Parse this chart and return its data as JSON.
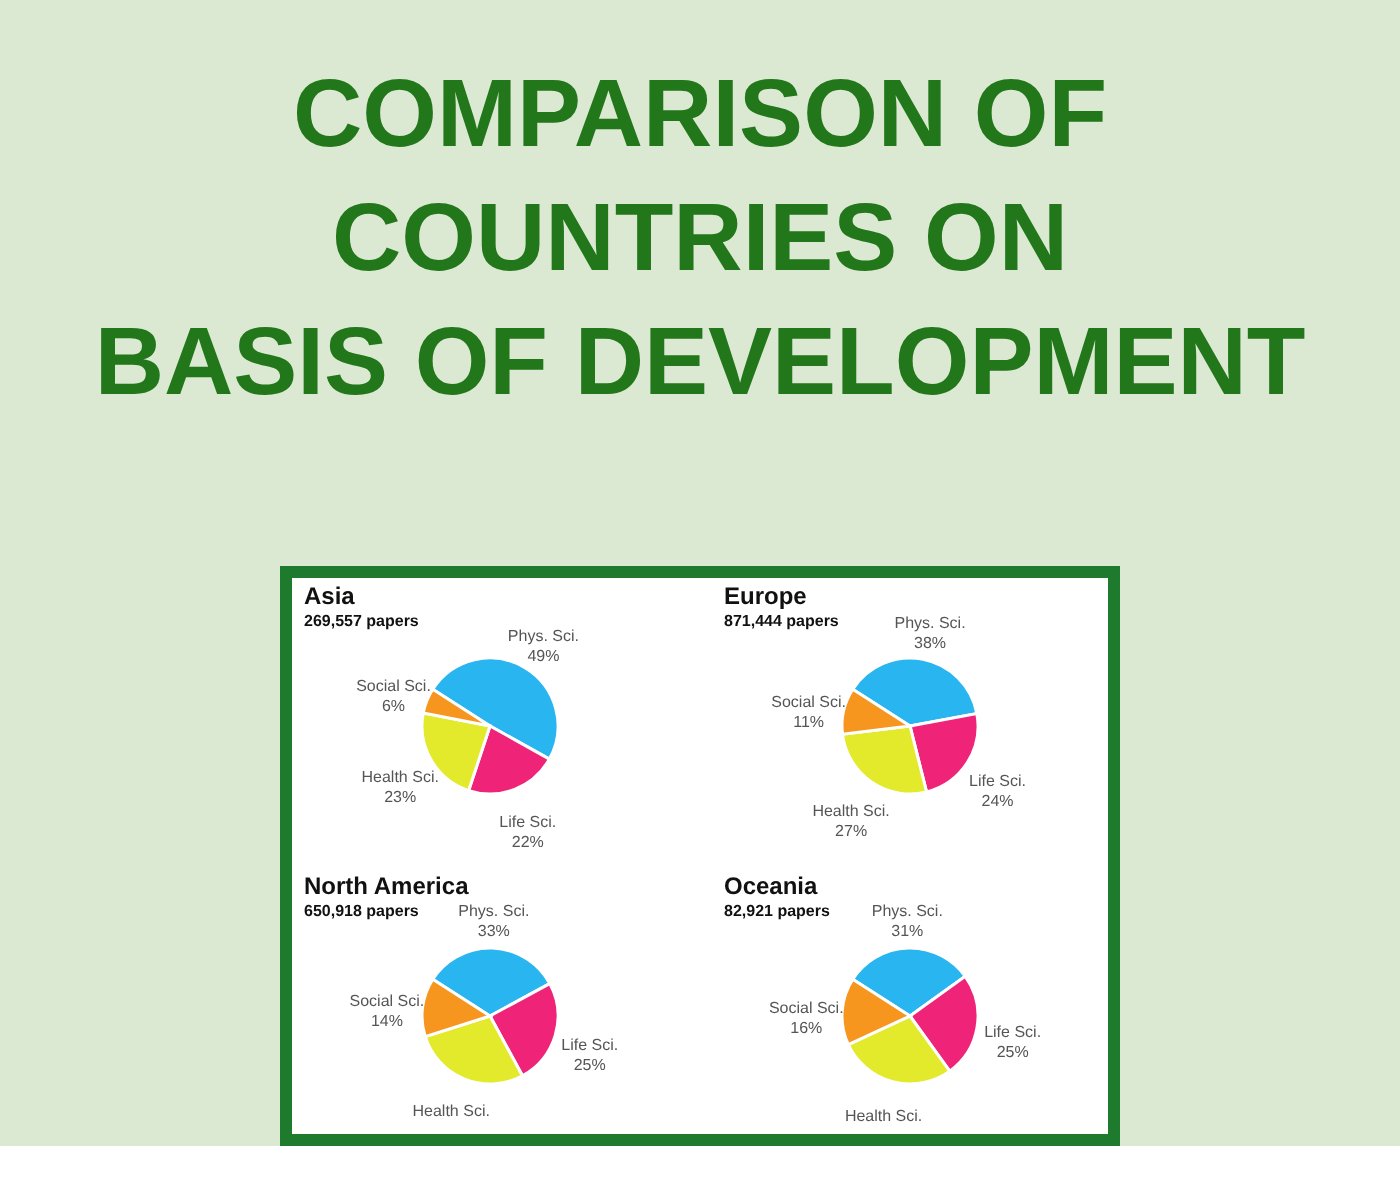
{
  "chart_data": [
    {
      "type": "other",
      "title": "COMPARISON OF\nCOUNTRIES ON\nBASIS OF DEVELOPMENT"
    },
    {
      "type": "pie",
      "title": "Asia",
      "subtitle": "269,557 papers",
      "categories": [
        "Phys. Sci.",
        "Life Sci.",
        "Health Sci.",
        "Social Sci."
      ],
      "values": [
        49,
        22,
        23,
        6
      ],
      "colors": [
        "#29b5ef",
        "#ef2479",
        "#e3e92b",
        "#f7961f"
      ],
      "value_labels": [
        "49%",
        "22%",
        "23%",
        "6%"
      ]
    },
    {
      "type": "pie",
      "title": "Europe",
      "subtitle": "871,444 papers",
      "categories": [
        "Phys. Sci.",
        "Life Sci.",
        "Health Sci.",
        "Social Sci."
      ],
      "values": [
        38,
        24,
        27,
        11
      ],
      "colors": [
        "#29b5ef",
        "#ef2479",
        "#e3e92b",
        "#f7961f"
      ],
      "value_labels": [
        "38%",
        "24%",
        "27%",
        "11%"
      ]
    },
    {
      "type": "pie",
      "title": "North America",
      "subtitle": "650,918 papers",
      "categories": [
        "Phys. Sci.",
        "Life Sci.",
        "Health Sci.",
        "Social Sci."
      ],
      "values": [
        33,
        25,
        28,
        14
      ],
      "colors": [
        "#29b5ef",
        "#ef2479",
        "#e3e92b",
        "#f7961f"
      ],
      "value_labels": [
        "33%",
        "25%",
        null,
        "14%"
      ]
    },
    {
      "type": "pie",
      "title": "Oceania",
      "subtitle": "82,921 papers",
      "categories": [
        "Phys. Sci.",
        "Life Sci.",
        "Health Sci.",
        "Social Sci."
      ],
      "values": [
        31,
        25,
        28,
        16
      ],
      "colors": [
        "#29b5ef",
        "#ef2479",
        "#e3e92b",
        "#f7961f"
      ],
      "value_labels": [
        "31%",
        "25%",
        null,
        "16%"
      ]
    }
  ]
}
